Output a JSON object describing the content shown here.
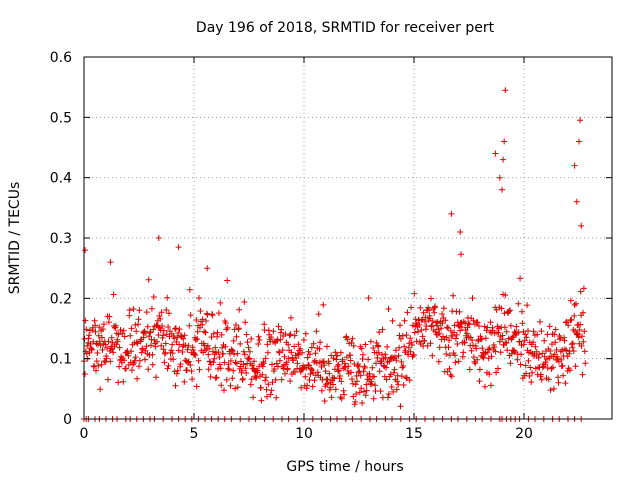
{
  "chart_data": {
    "type": "scatter",
    "title": "Day 196 of 2018, SRMTID for receiver pert",
    "xlabel": "GPS time / hours",
    "ylabel": "SRMTID / TECUs",
    "xlim": [
      0,
      24
    ],
    "ylim": [
      0,
      0.6
    ],
    "x_ticks": [
      0,
      5,
      10,
      15,
      20
    ],
    "x_tick_labels": [
      "0",
      "5",
      "10",
      "15",
      "20"
    ],
    "y_ticks": [
      0,
      0.1,
      0.2,
      0.3,
      0.4,
      0.5,
      0.6
    ],
    "y_tick_labels": [
      "0",
      "0.1",
      "0.2",
      "0.3",
      "0.4",
      "0.5",
      "0.6"
    ],
    "grid": true,
    "marker": "+",
    "color": "#e00000",
    "series": [
      {
        "name": "SRMTID",
        "baseline": [
          [
            0.0,
            0.13
          ],
          [
            0.5,
            0.12
          ],
          [
            1.0,
            0.11
          ],
          [
            1.5,
            0.12
          ],
          [
            2.0,
            0.11
          ],
          [
            2.5,
            0.12
          ],
          [
            3.0,
            0.13
          ],
          [
            3.5,
            0.15
          ],
          [
            4.0,
            0.12
          ],
          [
            4.5,
            0.11
          ],
          [
            5.0,
            0.11
          ],
          [
            5.5,
            0.12
          ],
          [
            6.0,
            0.11
          ],
          [
            6.5,
            0.1
          ],
          [
            7.0,
            0.1
          ],
          [
            7.5,
            0.09
          ],
          [
            8.0,
            0.08
          ],
          [
            8.5,
            0.1
          ],
          [
            9.0,
            0.11
          ],
          [
            9.5,
            0.11
          ],
          [
            10.0,
            0.09
          ],
          [
            10.5,
            0.09
          ],
          [
            11.0,
            0.08
          ],
          [
            11.5,
            0.08
          ],
          [
            12.0,
            0.08
          ],
          [
            12.5,
            0.08
          ],
          [
            13.0,
            0.08
          ],
          [
            13.5,
            0.09
          ],
          [
            14.0,
            0.09
          ],
          [
            14.5,
            0.1
          ],
          [
            15.0,
            0.14
          ],
          [
            15.5,
            0.17
          ],
          [
            16.0,
            0.15
          ],
          [
            16.5,
            0.13
          ],
          [
            17.0,
            0.14
          ],
          [
            17.5,
            0.13
          ],
          [
            18.0,
            0.12
          ],
          [
            18.5,
            0.13
          ],
          [
            19.0,
            0.15
          ],
          [
            19.5,
            0.14
          ],
          [
            20.0,
            0.12
          ],
          [
            20.5,
            0.11
          ],
          [
            21.0,
            0.1
          ],
          [
            21.5,
            0.1
          ],
          [
            22.0,
            0.13
          ],
          [
            22.5,
            0.14
          ],
          [
            22.8,
            0.14
          ]
        ],
        "spikes": [
          [
            0.05,
            0.28
          ],
          [
            1.2,
            0.26
          ],
          [
            3.4,
            0.3
          ],
          [
            4.3,
            0.285
          ],
          [
            5.6,
            0.25
          ],
          [
            16.7,
            0.34
          ],
          [
            17.1,
            0.31
          ],
          [
            18.7,
            0.44
          ],
          [
            18.9,
            0.4
          ],
          [
            19.0,
            0.38
          ],
          [
            19.15,
            0.545
          ],
          [
            19.1,
            0.46
          ],
          [
            19.05,
            0.43
          ],
          [
            22.3,
            0.42
          ],
          [
            22.4,
            0.36
          ],
          [
            22.55,
            0.495
          ],
          [
            22.5,
            0.46
          ],
          [
            22.6,
            0.32
          ]
        ],
        "zero_points_x": [
          0.0,
          0.1,
          0.2,
          0.5,
          0.7,
          1.0,
          1.3,
          1.5,
          1.9,
          2.1,
          2.4,
          2.7,
          3.0,
          3.2,
          3.6,
          4.0,
          4.3,
          4.6,
          4.9,
          5.2,
          5.5,
          5.8,
          6.1,
          6.4,
          6.7,
          7.1,
          7.5,
          7.8,
          8.2,
          8.6,
          9.0,
          9.3,
          9.7,
          10.0,
          10.4,
          10.8,
          11.2,
          11.5,
          11.9,
          12.2,
          12.6,
          13.0,
          13.3,
          13.7,
          14.0,
          14.4,
          14.8,
          15.1,
          15.5,
          15.9,
          16.3,
          16.7,
          17.0,
          17.4,
          17.8,
          18.1,
          18.5,
          18.9,
          19.0,
          19.2,
          19.4,
          19.6,
          19.8,
          20.2,
          20.5,
          20.9,
          21.3,
          21.6,
          22.0,
          22.3,
          22.6
        ]
      }
    ]
  }
}
